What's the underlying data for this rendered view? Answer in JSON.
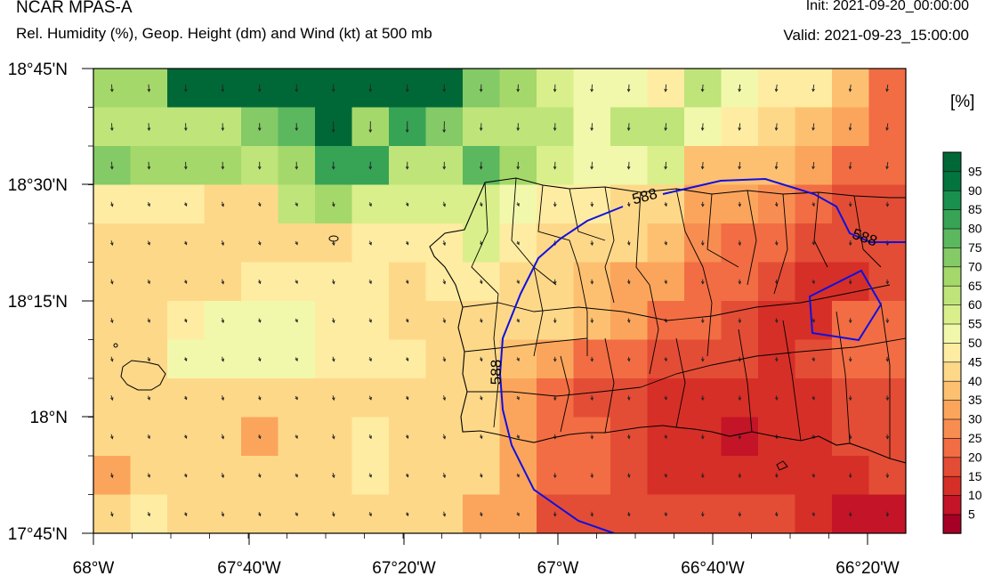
{
  "header": {
    "model": "NCAR MPAS-A",
    "field": "Rel. Humidity (%), Geop. Height (dm) and Wind (kt) at 500 mb",
    "init": "Init: 2021-09-20_00:00:00",
    "valid": "Valid: 2021-09-23_15:00:00"
  },
  "colorbar": {
    "unit": "[%]",
    "labels": [
      "5",
      "10",
      "15",
      "20",
      "25",
      "30",
      "35",
      "40",
      "45",
      "50",
      "55",
      "60",
      "65",
      "70",
      "75",
      "80",
      "85",
      "90",
      "95"
    ],
    "colors": [
      "#a50026",
      "#c41427",
      "#d62f27",
      "#e34d35",
      "#f26d43",
      "#f88d52",
      "#fba55c",
      "#fdc071",
      "#fed889",
      "#feeca2",
      "#f1f8ab",
      "#d9ef8b",
      "#bfe47a",
      "#a5d86a",
      "#84ca67",
      "#5bb85e",
      "#37a355",
      "#19904d",
      "#04743f",
      "#006837"
    ]
  },
  "axes": {
    "x_ticks": [
      "68°W",
      "67°40'W",
      "67°20'W",
      "67°W",
      "66°40'W",
      "66°20'W"
    ],
    "y_ticks": [
      "18°45'N",
      "18°30'N",
      "18°15'N",
      "18°N",
      "17°45'N"
    ]
  },
  "contours": {
    "labels": [
      "588",
      "588",
      "588"
    ]
  },
  "chart_data": {
    "type": "heatmap",
    "variable": "Relative humidity (%)",
    "x_range": [
      "68°W",
      "66°15'W"
    ],
    "y_range": [
      "17°45'N",
      "18°45'N"
    ],
    "rows": [
      [
        68,
        68,
        98,
        98,
        98,
        98,
        98,
        98,
        98,
        98,
        72,
        65,
        57,
        52,
        52,
        48,
        62,
        52,
        48,
        48,
        38,
        22
      ],
      [
        62,
        62,
        62,
        62,
        72,
        76,
        98,
        66,
        80,
        72,
        62,
        62,
        62,
        52,
        62,
        62,
        50,
        48,
        42,
        38,
        32,
        22
      ],
      [
        70,
        68,
        68,
        68,
        62,
        66,
        84,
        80,
        62,
        62,
        78,
        66,
        57,
        50,
        52,
        58,
        38,
        38,
        38,
        34,
        22,
        22
      ],
      [
        48,
        48,
        48,
        42,
        40,
        62,
        68,
        58,
        58,
        58,
        56,
        50,
        48,
        46,
        44,
        40,
        34,
        30,
        26,
        22,
        18,
        18
      ],
      [
        40,
        40,
        40,
        40,
        40,
        40,
        44,
        46,
        46,
        48,
        55,
        48,
        44,
        44,
        40,
        36,
        28,
        24,
        20,
        18,
        18,
        18
      ],
      [
        40,
        40,
        40,
        40,
        46,
        46,
        46,
        46,
        40,
        48,
        46,
        44,
        40,
        36,
        34,
        30,
        22,
        20,
        18,
        14,
        12,
        18
      ],
      [
        40,
        40,
        48,
        52,
        52,
        52,
        48,
        48,
        44,
        40,
        40,
        42,
        40,
        36,
        30,
        22,
        22,
        18,
        14,
        14,
        22,
        20
      ],
      [
        40,
        40,
        52,
        52,
        52,
        52,
        48,
        48,
        48,
        40,
        40,
        38,
        30,
        22,
        20,
        16,
        16,
        16,
        14,
        18,
        20,
        20
      ],
      [
        44,
        40,
        40,
        40,
        40,
        40,
        40,
        42,
        40,
        40,
        40,
        34,
        24,
        18,
        16,
        14,
        10,
        10,
        14,
        14,
        18,
        18
      ],
      [
        44,
        40,
        40,
        40,
        34,
        40,
        40,
        48,
        44,
        44,
        40,
        32,
        22,
        20,
        18,
        14,
        10,
        6,
        10,
        14,
        18,
        18
      ],
      [
        32,
        40,
        40,
        40,
        40,
        44,
        44,
        48,
        44,
        44,
        40,
        32,
        20,
        20,
        16,
        14,
        14,
        12,
        14,
        12,
        14,
        16
      ],
      [
        40,
        48,
        40,
        40,
        40,
        40,
        40,
        40,
        40,
        40,
        34,
        30,
        18,
        18,
        18,
        18,
        18,
        16,
        16,
        12,
        8,
        8
      ]
    ],
    "height_contour_dm": 588
  }
}
